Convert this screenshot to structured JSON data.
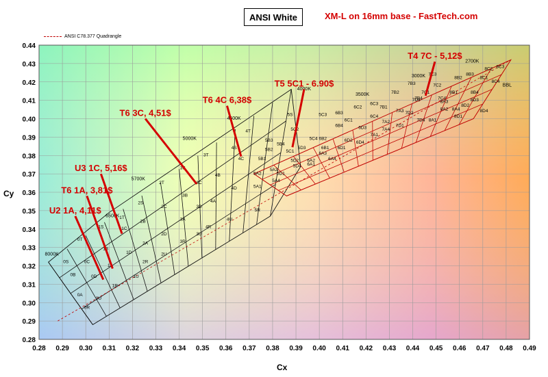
{
  "header": {
    "title": "ANSI White",
    "subtitle": "XM-L on 16mm base - FastTech.com"
  },
  "legend": {
    "label": "ANSI C78.377 Quadrangle"
  },
  "chart_data": {
    "type": "scatter",
    "title": "ANSI White",
    "subtitle": "XM-L on 16mm base - FastTech.com",
    "xlabel": "Cx",
    "ylabel": "Cy",
    "xlim": [
      0.28,
      0.49
    ],
    "ylim": [
      0.28,
      0.44
    ],
    "x_ticks": [
      "0.28",
      "0.29",
      "0.30",
      "0.31",
      "0.32",
      "0.33",
      "0.34",
      "0.35",
      "0.36",
      "0.37",
      "0.38",
      "0.39",
      "0.40",
      "0.41",
      "0.42",
      "0.43",
      "0.44",
      "0.45",
      "0.46",
      "0.47",
      "0.48",
      "0.49"
    ],
    "y_ticks": [
      "0.28",
      "0.29",
      "0.30",
      "0.31",
      "0.32",
      "0.33",
      "0.34",
      "0.35",
      "0.36",
      "0.37",
      "0.38",
      "0.39",
      "0.40",
      "0.41",
      "0.42",
      "0.43",
      "0.44"
    ],
    "grid": true,
    "legend_position": "top-left",
    "background": "CIE chromaticity color gradient",
    "series": [
      {
        "name": "ANSI C78.377 Quadrangle",
        "color": "#c00000",
        "x": [
          0.288,
          0.482
        ],
        "y": [
          0.29,
          0.432
        ]
      }
    ],
    "cct_labels": [
      {
        "text": "8000K",
        "x": 0.2825,
        "y": 0.3255
      },
      {
        "text": "6500K",
        "x": 0.3085,
        "y": 0.3465
      },
      {
        "text": "5700K",
        "x": 0.3195,
        "y": 0.3665
      },
      {
        "text": "5000K",
        "x": 0.3415,
        "y": 0.3885
      },
      {
        "text": "4500K",
        "x": 0.3605,
        "y": 0.3995
      },
      {
        "text": "4000K",
        "x": 0.3905,
        "y": 0.4155
      },
      {
        "text": "3500K",
        "x": 0.4155,
        "y": 0.4125
      },
      {
        "text": "3000K",
        "x": 0.4395,
        "y": 0.4225
      },
      {
        "text": "2700K",
        "x": 0.4625,
        "y": 0.4305
      },
      {
        "text": "BBL",
        "x": 0.4785,
        "y": 0.4175
      }
    ],
    "bin_labels": [
      {
        "text": "0S",
        "x": 0.2915,
        "y": 0.3215
      },
      {
        "text": "0T",
        "x": 0.2975,
        "y": 0.3335
      },
      {
        "text": "0C",
        "x": 0.3005,
        "y": 0.3215
      },
      {
        "text": "0B",
        "x": 0.2945,
        "y": 0.3145
      },
      {
        "text": "0D",
        "x": 0.3035,
        "y": 0.3135
      },
      {
        "text": "0A",
        "x": 0.2975,
        "y": 0.3035
      },
      {
        "text": "0U",
        "x": 0.3055,
        "y": 0.3015
      },
      {
        "text": "0R",
        "x": 0.3005,
        "y": 0.2965
      },
      {
        "text": "1S",
        "x": 0.3065,
        "y": 0.3405
      },
      {
        "text": "1B",
        "x": 0.3085,
        "y": 0.3285
      },
      {
        "text": "1A",
        "x": 0.3105,
        "y": 0.3195
      },
      {
        "text": "1R",
        "x": 0.3125,
        "y": 0.3085
      },
      {
        "text": "1T",
        "x": 0.3155,
        "y": 0.3455
      },
      {
        "text": "1C",
        "x": 0.3165,
        "y": 0.3395
      },
      {
        "text": "1D",
        "x": 0.3185,
        "y": 0.3265
      },
      {
        "text": "1U",
        "x": 0.3215,
        "y": 0.3135
      },
      {
        "text": "2S",
        "x": 0.3235,
        "y": 0.3535
      },
      {
        "text": "2B",
        "x": 0.3245,
        "y": 0.3435
      },
      {
        "text": "2A",
        "x": 0.3255,
        "y": 0.3315
      },
      {
        "text": "2R",
        "x": 0.3255,
        "y": 0.3215
      },
      {
        "text": "2T",
        "x": 0.3325,
        "y": 0.3645
      },
      {
        "text": "2C",
        "x": 0.3335,
        "y": 0.3515
      },
      {
        "text": "2D",
        "x": 0.3335,
        "y": 0.3365
      },
      {
        "text": "2U",
        "x": 0.3335,
        "y": 0.3255
      },
      {
        "text": "3S",
        "x": 0.3415,
        "y": 0.3725
      },
      {
        "text": "3B",
        "x": 0.3425,
        "y": 0.3575
      },
      {
        "text": "3A",
        "x": 0.3415,
        "y": 0.3445
      },
      {
        "text": "3R",
        "x": 0.3415,
        "y": 0.3325
      },
      {
        "text": "3T",
        "x": 0.3515,
        "y": 0.3795
      },
      {
        "text": "3C",
        "x": 0.3485,
        "y": 0.3645
      },
      {
        "text": "3D",
        "x": 0.3485,
        "y": 0.3515
      },
      {
        "text": "3U",
        "x": 0.3485,
        "y": 0.3365
      },
      {
        "text": "4T",
        "x": 0.3695,
        "y": 0.3925
      },
      {
        "text": "4S",
        "x": 0.3635,
        "y": 0.3835
      },
      {
        "text": "4B",
        "x": 0.3565,
        "y": 0.3685
      },
      {
        "text": "4A",
        "x": 0.3545,
        "y": 0.3545
      },
      {
        "text": "4R",
        "x": 0.3525,
        "y": 0.3405
      },
      {
        "text": "4C",
        "x": 0.3665,
        "y": 0.3775
      },
      {
        "text": "4D",
        "x": 0.3635,
        "y": 0.3615
      },
      {
        "text": "4U",
        "x": 0.3615,
        "y": 0.3445
      },
      {
        "text": "5R",
        "x": 0.3735,
        "y": 0.3495
      },
      {
        "text": "5S",
        "x": 0.3875,
        "y": 0.4015
      },
      {
        "text": "5B3",
        "x": 0.3785,
        "y": 0.3875
      },
      {
        "text": "5B4",
        "x": 0.3835,
        "y": 0.3855
      },
      {
        "text": "5B2",
        "x": 0.3785,
        "y": 0.3825
      },
      {
        "text": "5B1",
        "x": 0.3755,
        "y": 0.3775
      },
      {
        "text": "5C1",
        "x": 0.3875,
        "y": 0.3815
      },
      {
        "text": "5C2",
        "x": 0.3895,
        "y": 0.3935
      },
      {
        "text": "5C3",
        "x": 0.4015,
        "y": 0.4015
      },
      {
        "text": "5C4",
        "x": 0.3975,
        "y": 0.3885
      },
      {
        "text": "5A2",
        "x": 0.3735,
        "y": 0.3695
      },
      {
        "text": "5A3",
        "x": 0.3805,
        "y": 0.3715
      },
      {
        "text": "5A1",
        "x": 0.3735,
        "y": 0.3625
      },
      {
        "text": "5A4",
        "x": 0.3815,
        "y": 0.3655
      },
      {
        "text": "5D1",
        "x": 0.3835,
        "y": 0.3695
      },
      {
        "text": "5D2",
        "x": 0.3895,
        "y": 0.3765
      },
      {
        "text": "5D3",
        "x": 0.3925,
        "y": 0.3835
      },
      {
        "text": "5D4",
        "x": 0.3905,
        "y": 0.3735
      },
      {
        "text": "6B3",
        "x": 0.4085,
        "y": 0.4025
      },
      {
        "text": "6B4",
        "x": 0.4085,
        "y": 0.3955
      },
      {
        "text": "6B2",
        "x": 0.4015,
        "y": 0.3885
      },
      {
        "text": "6B1",
        "x": 0.4025,
        "y": 0.3835
      },
      {
        "text": "6A3",
        "x": 0.4015,
        "y": 0.3805
      },
      {
        "text": "6A2",
        "x": 0.3965,
        "y": 0.3765
      },
      {
        "text": "6A1",
        "x": 0.3965,
        "y": 0.3745
      },
      {
        "text": "6A4",
        "x": 0.4055,
        "y": 0.3775
      },
      {
        "text": "6C2",
        "x": 0.4165,
        "y": 0.4055
      },
      {
        "text": "6C1",
        "x": 0.4125,
        "y": 0.3985
      },
      {
        "text": "6C3",
        "x": 0.4235,
        "y": 0.4075
      },
      {
        "text": "6C4",
        "x": 0.4235,
        "y": 0.4005
      },
      {
        "text": "6D3",
        "x": 0.4185,
        "y": 0.3945
      },
      {
        "text": "6D2",
        "x": 0.4125,
        "y": 0.3875
      },
      {
        "text": "6D1",
        "x": 0.4095,
        "y": 0.3835
      },
      {
        "text": "6D4",
        "x": 0.4175,
        "y": 0.3865
      },
      {
        "text": "7B2",
        "x": 0.4325,
        "y": 0.4135
      },
      {
        "text": "7B3",
        "x": 0.4395,
        "y": 0.4185
      },
      {
        "text": "7B1",
        "x": 0.4275,
        "y": 0.4055
      },
      {
        "text": "7B4",
        "x": 0.4425,
        "y": 0.4105
      },
      {
        "text": "7A2",
        "x": 0.4285,
        "y": 0.3975
      },
      {
        "text": "7A3",
        "x": 0.4345,
        "y": 0.4035
      },
      {
        "text": "7A1",
        "x": 0.4235,
        "y": 0.3905
      },
      {
        "text": "7A4",
        "x": 0.4285,
        "y": 0.3935
      },
      {
        "text": "7C1",
        "x": 0.4455,
        "y": 0.4135
      },
      {
        "text": "7C2",
        "x": 0.4505,
        "y": 0.4175
      },
      {
        "text": "7C3",
        "x": 0.4485,
        "y": 0.4235
      },
      {
        "text": "7C4",
        "x": 0.4525,
        "y": 0.4105
      },
      {
        "text": "7D1",
        "x": 0.4345,
        "y": 0.3955
      },
      {
        "text": "7D2",
        "x": 0.4385,
        "y": 0.4025
      },
      {
        "text": "7D3",
        "x": 0.4415,
        "y": 0.4095
      },
      {
        "text": "7D4",
        "x": 0.4435,
        "y": 0.3985
      },
      {
        "text": "8A1",
        "x": 0.4485,
        "y": 0.3985
      },
      {
        "text": "8A2",
        "x": 0.4535,
        "y": 0.4045
      },
      {
        "text": "8A3",
        "x": 0.4535,
        "y": 0.4085
      },
      {
        "text": "8A4",
        "x": 0.4585,
        "y": 0.4045
      },
      {
        "text": "8B1",
        "x": 0.4575,
        "y": 0.4135
      },
      {
        "text": "8B2",
        "x": 0.4595,
        "y": 0.4215
      },
      {
        "text": "8B3",
        "x": 0.4645,
        "y": 0.4235
      },
      {
        "text": "8B4",
        "x": 0.4665,
        "y": 0.4135
      },
      {
        "text": "8C1",
        "x": 0.4705,
        "y": 0.4215
      },
      {
        "text": "8C2",
        "x": 0.4725,
        "y": 0.4265
      },
      {
        "text": "8C3",
        "x": 0.4775,
        "y": 0.4275
      },
      {
        "text": "8C4",
        "x": 0.4755,
        "y": 0.4195
      },
      {
        "text": "8D1",
        "x": 0.4595,
        "y": 0.4005
      },
      {
        "text": "8D2",
        "x": 0.4625,
        "y": 0.4065
      },
      {
        "text": "8D3",
        "x": 0.4665,
        "y": 0.4095
      },
      {
        "text": "8D4",
        "x": 0.4705,
        "y": 0.4035
      }
    ],
    "annotations": [
      {
        "text": "T4 7C - 5,12$",
        "label_x": 0.4495,
        "label_y": 0.4325,
        "target_x": 0.4455,
        "target_y": 0.4125
      },
      {
        "text": "T5 5C1 - 6.90$",
        "label_x": 0.3935,
        "label_y": 0.4175,
        "target_x": 0.3885,
        "target_y": 0.3845
      },
      {
        "text": "T6 4C 6,38$",
        "label_x": 0.3605,
        "label_y": 0.4085,
        "target_x": 0.3665,
        "target_y": 0.3795
      },
      {
        "text": "T6 3C, 4,51$",
        "label_x": 0.3255,
        "label_y": 0.4015,
        "target_x": 0.3475,
        "target_y": 0.3645
      },
      {
        "text": "U3 1C, 5,16$",
        "label_x": 0.3065,
        "label_y": 0.3715,
        "target_x": 0.3155,
        "target_y": 0.3375
      },
      {
        "text": "T6 1A, 3,81$",
        "label_x": 0.3005,
        "label_y": 0.3595,
        "target_x": 0.3115,
        "target_y": 0.3185
      },
      {
        "text": "U2 1A, 4,11$",
        "label_x": 0.2955,
        "label_y": 0.3485,
        "target_x": 0.3075,
        "target_y": 0.3125
      }
    ],
    "annotation_color": "#d40000"
  }
}
